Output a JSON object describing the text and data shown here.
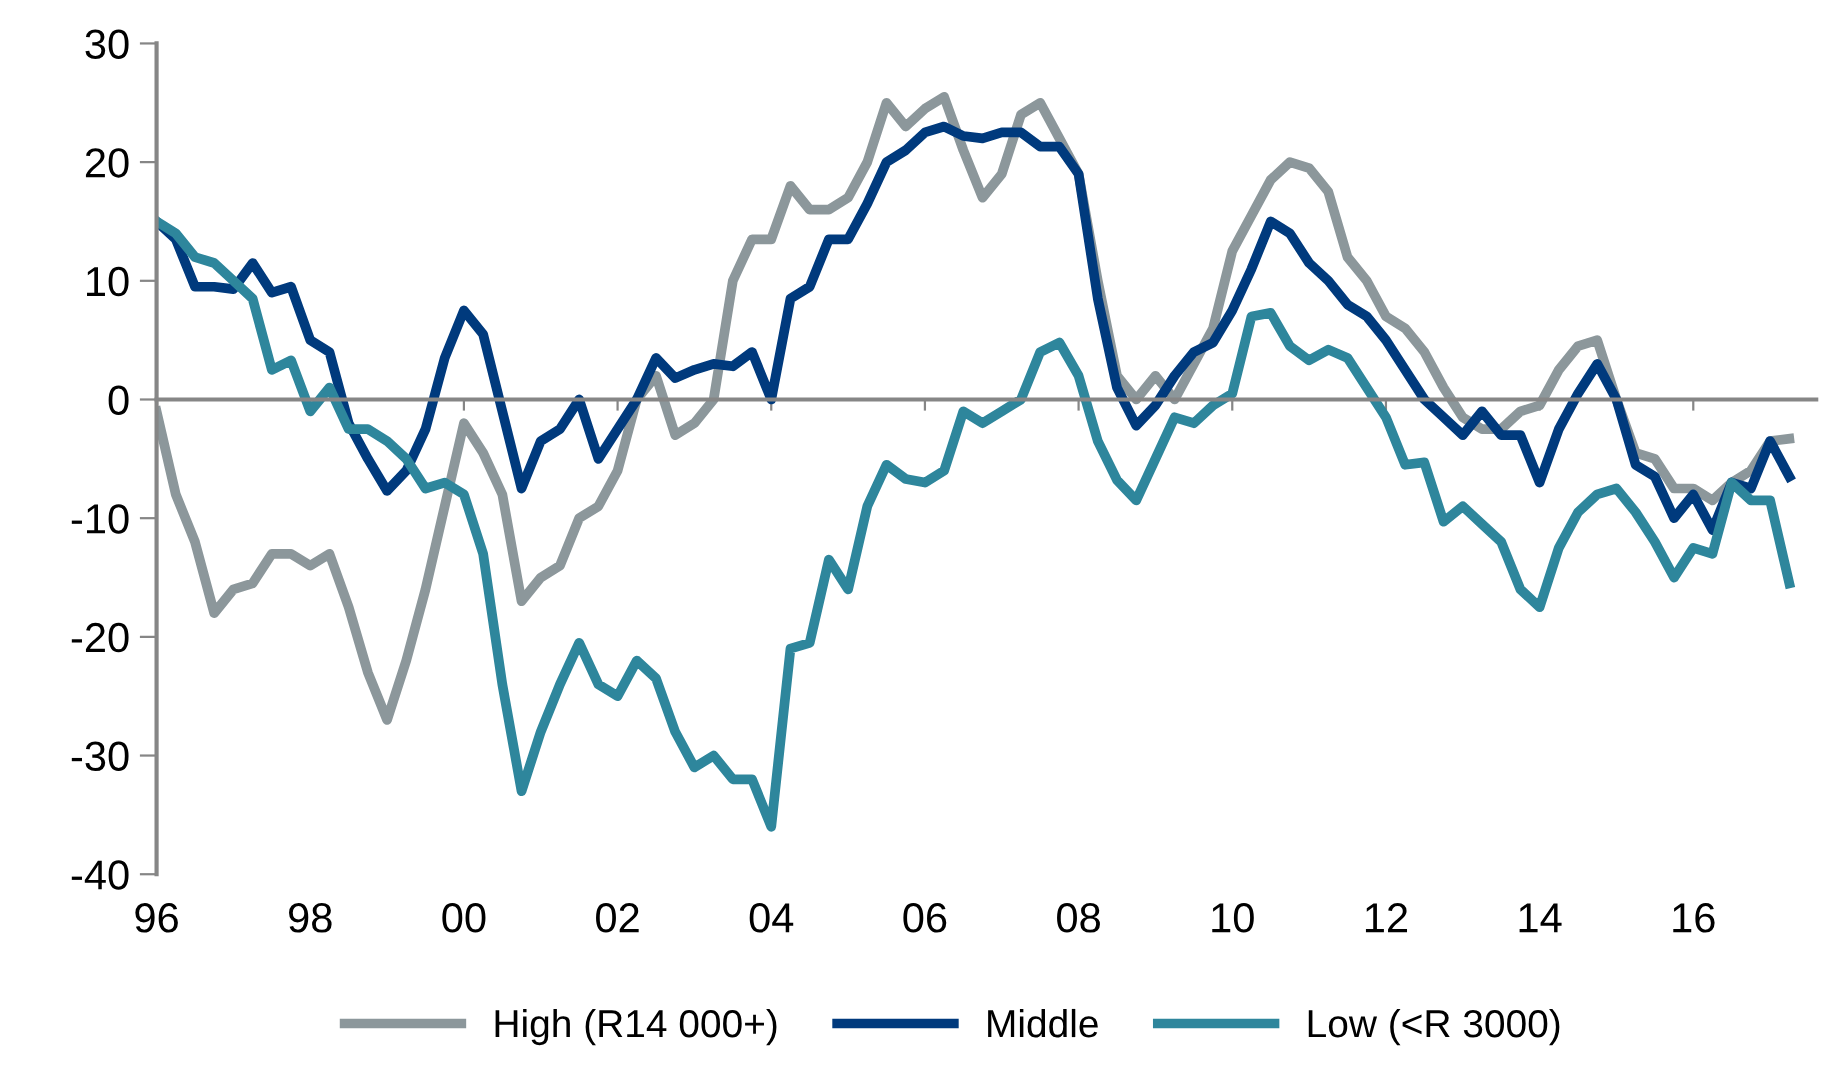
{
  "chart_data": {
    "type": "line",
    "x": [
      1996,
      1996.25,
      1996.5,
      1996.75,
      1997,
      1997.25,
      1997.5,
      1997.75,
      1998,
      1998.25,
      1998.5,
      1998.75,
      1999,
      1999.25,
      1999.5,
      1999.75,
      2000,
      2000.25,
      2000.5,
      2000.75,
      2001,
      2001.25,
      2001.5,
      2001.75,
      2002,
      2002.25,
      2002.5,
      2002.75,
      2003,
      2003.25,
      2003.5,
      2003.75,
      2004,
      2004.25,
      2004.5,
      2004.75,
      2005,
      2005.25,
      2005.5,
      2005.75,
      2006,
      2006.25,
      2006.5,
      2006.75,
      2007,
      2007.25,
      2007.5,
      2007.75,
      2008,
      2008.25,
      2008.5,
      2008.75,
      2009,
      2009.25,
      2009.5,
      2009.75,
      2010,
      2010.25,
      2010.5,
      2010.75,
      2011,
      2011.25,
      2011.5,
      2011.75,
      2012,
      2012.25,
      2012.5,
      2012.75,
      2013,
      2013.25,
      2013.5,
      2013.75,
      2014,
      2014.25,
      2014.5,
      2014.75,
      2015,
      2015.25,
      2015.5,
      2015.75,
      2016,
      2016.25,
      2016.5,
      2016.75,
      2017,
      2017.25
    ],
    "series": [
      {
        "name": "High (R14 000+)",
        "color": "#8c979b",
        "values": [
          -1,
          -8,
          -12,
          -18,
          -16,
          -15.5,
          -13,
          -13,
          -14,
          -13,
          -17.5,
          -23,
          -27,
          -22,
          -16,
          -9,
          -2,
          -4.5,
          -8,
          -17,
          -15,
          -14,
          -10,
          -9,
          -6,
          0,
          2,
          -3,
          -2,
          0,
          10,
          13.5,
          13.5,
          18,
          16,
          16,
          17,
          20,
          25,
          23,
          24.5,
          25.5,
          21,
          17,
          19,
          24,
          25,
          22,
          19,
          10,
          2,
          0,
          2,
          0,
          3,
          6,
          12.5,
          15.5,
          18.5,
          20,
          19.5,
          17.5,
          12,
          10,
          7,
          6,
          4,
          1,
          -1.5,
          -2.5,
          -2.5,
          -1,
          -0.5,
          2.5,
          4.5,
          5,
          0,
          -4.5,
          -5,
          -7.5,
          -7.5,
          -8.5,
          -7,
          -6,
          -3.5,
          -3.3
        ]
      },
      {
        "name": "Middle",
        "color": "#003a7d",
        "values": [
          15,
          13.5,
          9.5,
          9.5,
          9.3,
          11.5,
          9,
          9.5,
          5,
          4,
          -2,
          -5,
          -7.7,
          -6,
          -2.5,
          3.5,
          7.5,
          5.5,
          -1,
          -7.5,
          -3.5,
          -2.5,
          0,
          -5,
          -2.5,
          0,
          3.5,
          1.8,
          2.5,
          3,
          2.8,
          4,
          0,
          8.5,
          9.5,
          13.5,
          13.5,
          16.5,
          20,
          21,
          22.5,
          23,
          22.2,
          22,
          22.5,
          22.5,
          21.3,
          21.3,
          19,
          8.5,
          1,
          -2.2,
          -0.5,
          2,
          4,
          4.8,
          7.5,
          11,
          15,
          14,
          11.5,
          10,
          8,
          7,
          5,
          2.5,
          0,
          -1.5,
          -3,
          -1,
          -3,
          -3,
          -7,
          -2.5,
          0.5,
          3,
          0,
          -5.5,
          -6.5,
          -10,
          -8,
          -11,
          -7,
          -7.5,
          -3.5,
          -6.5
        ]
      },
      {
        "name": "Low (<R 3000)",
        "color": "#2e869c",
        "values": [
          15,
          14,
          12,
          11.5,
          10,
          8.5,
          2.5,
          3.3,
          -1,
          1,
          -2.5,
          -2.5,
          -3.5,
          -5,
          -7.5,
          -7,
          -8,
          -13,
          -24,
          -33,
          -28,
          -24,
          -20.5,
          -24,
          -25,
          -22,
          -23.5,
          -28,
          -31,
          -30,
          -32,
          -32,
          -36,
          -21,
          -20.5,
          -13.5,
          -16,
          -9,
          -5.5,
          -6.7,
          -7,
          -6,
          -1,
          -2,
          -1,
          0,
          4,
          4.8,
          2,
          -3.5,
          -6.8,
          -8.5,
          -5,
          -1.5,
          -2,
          -0.5,
          0.5,
          7,
          7.3,
          4.5,
          3.3,
          4.2,
          3.5,
          1,
          -1.5,
          -5.5,
          -5.3,
          -10.3,
          -9,
          -10.5,
          -12,
          -16,
          -17.5,
          -12.5,
          -9.5,
          -8,
          -7.5,
          -9.5,
          -12,
          -15,
          -12.5,
          -13,
          -7,
          -8.5,
          -8.5,
          -15.5
        ]
      }
    ],
    "xlim": [
      1996,
      2017.6
    ],
    "xticks": [
      {
        "value": 1996,
        "label": "96"
      },
      {
        "value": 1998,
        "label": "98"
      },
      {
        "value": 2000,
        "label": "00"
      },
      {
        "value": 2002,
        "label": "02"
      },
      {
        "value": 2004,
        "label": "04"
      },
      {
        "value": 2006,
        "label": "06"
      },
      {
        "value": 2008,
        "label": "08"
      },
      {
        "value": 2010,
        "label": "10"
      },
      {
        "value": 2012,
        "label": "12"
      },
      {
        "value": 2014,
        "label": "14"
      },
      {
        "value": 2016,
        "label": "16"
      }
    ],
    "ylim": [
      -40,
      30
    ],
    "yticks": [
      -40,
      -30,
      -20,
      -10,
      0,
      10,
      20,
      30
    ],
    "legend": "bottom",
    "marker": "none",
    "line_style": "solid"
  }
}
